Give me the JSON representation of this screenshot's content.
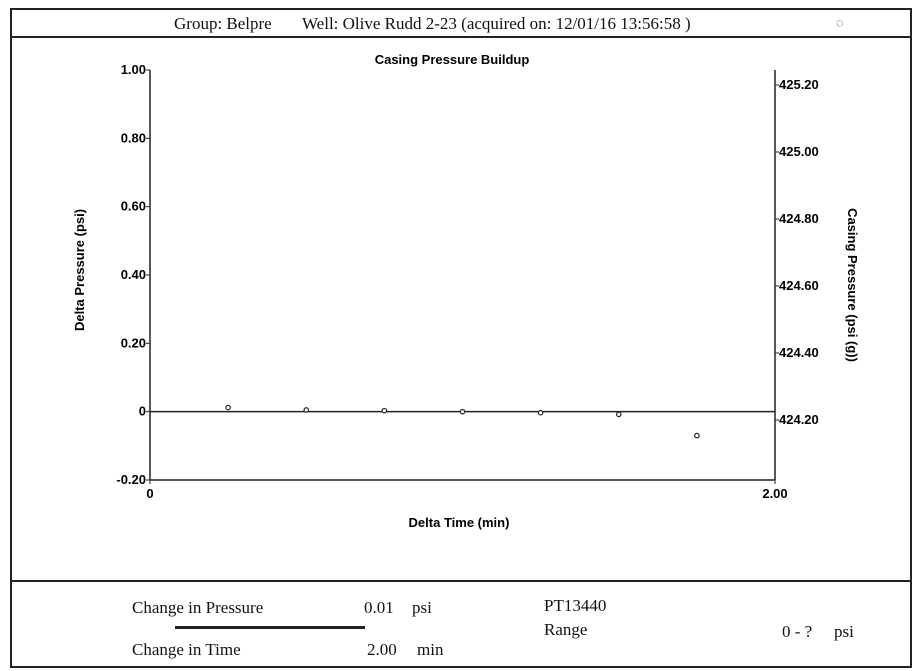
{
  "header": {
    "group": "Group: Belpre",
    "well": "Well: Olive Rudd 2-23 (acquired on: 12/01/16 13:56:58 )"
  },
  "chart_data": {
    "type": "scatter",
    "title": "Casing Pressure Buildup",
    "xlabel": "Delta Time (min)",
    "ylabel": "Delta Pressure (psi)",
    "y2label": "Casing Pressure (psi (g))",
    "xlim": [
      0,
      2.0
    ],
    "ylim": [
      -0.2,
      1.0
    ],
    "y2lim": [
      424.2,
      425.2
    ],
    "x_ticks": [
      "0",
      "2.00"
    ],
    "y_ticks": [
      "1.00",
      "0.80",
      "0.60",
      "0.40",
      "0.20",
      "0",
      "-0.20"
    ],
    "y2_ticks": [
      "425.20",
      "425.00",
      "424.80",
      "424.60",
      "424.40",
      "424.20"
    ],
    "series": [
      {
        "x": [
          0.25,
          0.5,
          0.75,
          1.0,
          1.25,
          1.5,
          1.75
        ],
        "y": [
          0.012,
          0.005,
          0.003,
          0.0,
          -0.003,
          -0.008,
          -0.07
        ]
      }
    ],
    "grid": false
  },
  "footer": {
    "change_pressure_label": "Change in Pressure",
    "change_pressure_value": "0.01",
    "change_pressure_unit": "psi",
    "change_time_label": "Change in Time",
    "change_time_value": "2.00",
    "change_time_unit": "min",
    "sensor_id": "PT13440",
    "range_label": "Range",
    "range_value": "0 - ?",
    "range_unit": "psi"
  }
}
